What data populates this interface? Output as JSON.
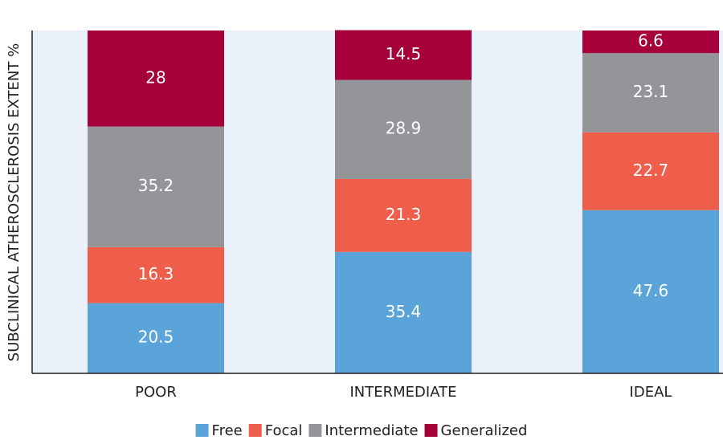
{
  "chart_data": {
    "type": "stacked_bar",
    "y_label": "SUBCLINICAL ATHEROSCLEROSIS EXTENT %",
    "categories": [
      "POOR",
      "INTERMEDIATE",
      "IDEAL"
    ],
    "ylim": [
      0,
      100
    ],
    "series": [
      {
        "name": "Free",
        "color": "#5ba4d9",
        "values": [
          20.5,
          35.4,
          47.6
        ]
      },
      {
        "name": "Focal",
        "color": "#ef5e4b",
        "values": [
          16.3,
          21.3,
          22.7
        ]
      },
      {
        "name": "Intermediate",
        "color": "#939598",
        "values": [
          35.2,
          28.9,
          23.1
        ]
      },
      {
        "name": "Generalized",
        "color": "#a6003a",
        "values": [
          28,
          14.5,
          6.6
        ]
      }
    ]
  }
}
